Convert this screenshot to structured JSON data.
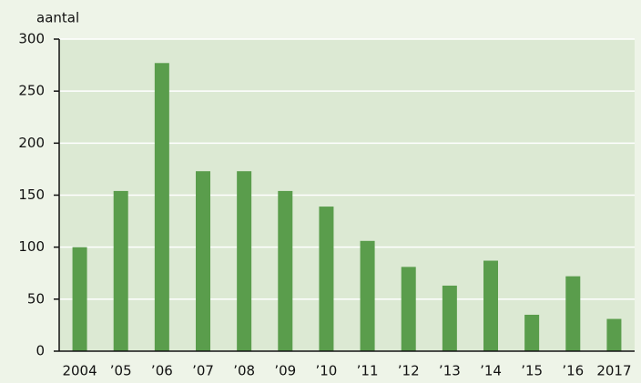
{
  "chart_data": {
    "type": "bar",
    "y_label": "aantal",
    "categories": [
      "2004",
      "’05",
      "’06",
      "’07",
      "’08",
      "’09",
      "’10",
      "’11",
      "’12",
      "’13",
      "’14",
      "’15",
      "’16",
      "2017"
    ],
    "values": [
      100,
      154,
      277,
      173,
      173,
      154,
      139,
      106,
      81,
      63,
      87,
      35,
      72,
      31
    ],
    "color": "#5a9d4c",
    "ylim": [
      0,
      300
    ],
    "yticks": [
      0,
      50,
      100,
      150,
      200,
      250,
      300
    ],
    "grid": true
  }
}
